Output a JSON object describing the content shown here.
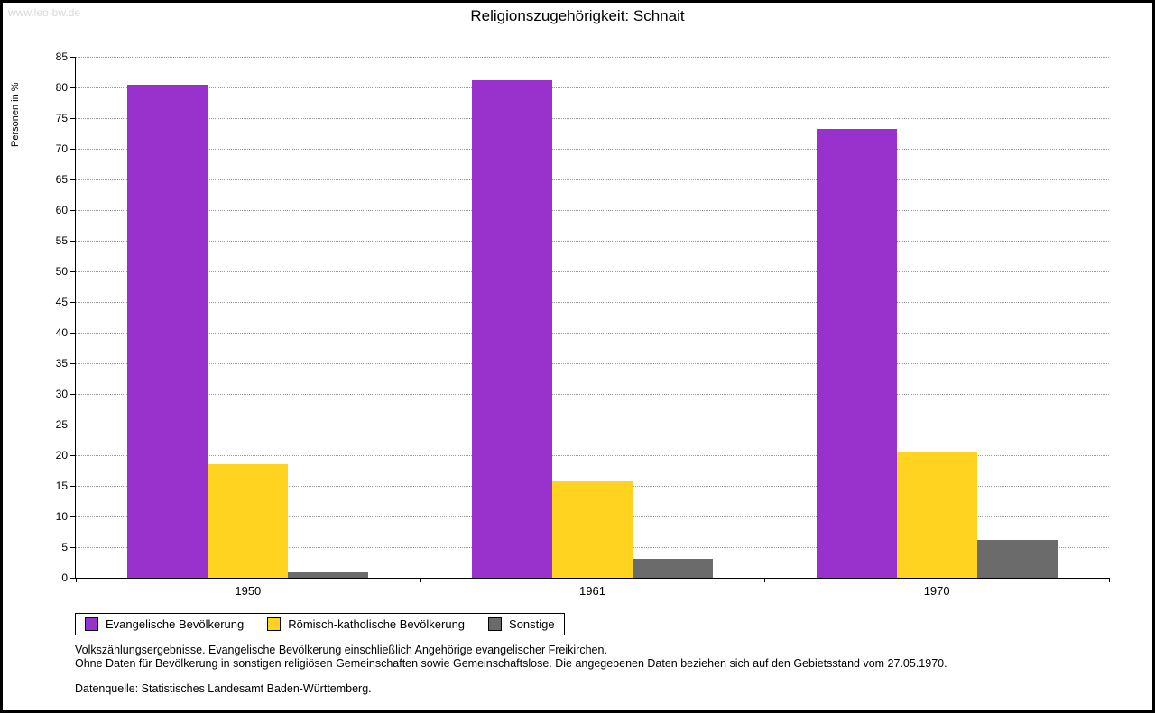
{
  "watermark": "www.leo-bw.de",
  "title": "Religionszugehörigkeit: Schnait",
  "chart_data": {
    "type": "bar",
    "title": "Religionszugehörigkeit: Schnait",
    "xlabel": "",
    "ylabel": "Personen in %",
    "categories": [
      "1950",
      "1961",
      "1970"
    ],
    "series": [
      {
        "name": "Evangelische Bevölkerung",
        "color": "#9932CC",
        "values": [
          80.5,
          81.2,
          73.2
        ]
      },
      {
        "name": "Römisch-katholische Bevölkerung",
        "color": "#FFD320",
        "values": [
          18.6,
          15.8,
          20.6
        ]
      },
      {
        "name": "Sonstige",
        "color": "#6B6B6B",
        "values": [
          0.9,
          3.1,
          6.2
        ]
      }
    ],
    "ylim": [
      0,
      85
    ],
    "ytick_step": 5,
    "grid": true,
    "legend_position": "bottom-left"
  },
  "footnotes": {
    "line1": "Volkszählungsergebnisse. Evangelische Bevölkerung einschließlich Angehörige evangelischer Freikirchen.",
    "line2": "Ohne Daten für Bevölkerung in sonstigen religiösen Gemeinschaften sowie Gemeinschaftslose. Die angegebenen Daten beziehen sich auf den Gebietsstand vom 27.05.1970.",
    "line3": "Datenquelle: Statistisches Landesamt Baden-Württemberg."
  }
}
